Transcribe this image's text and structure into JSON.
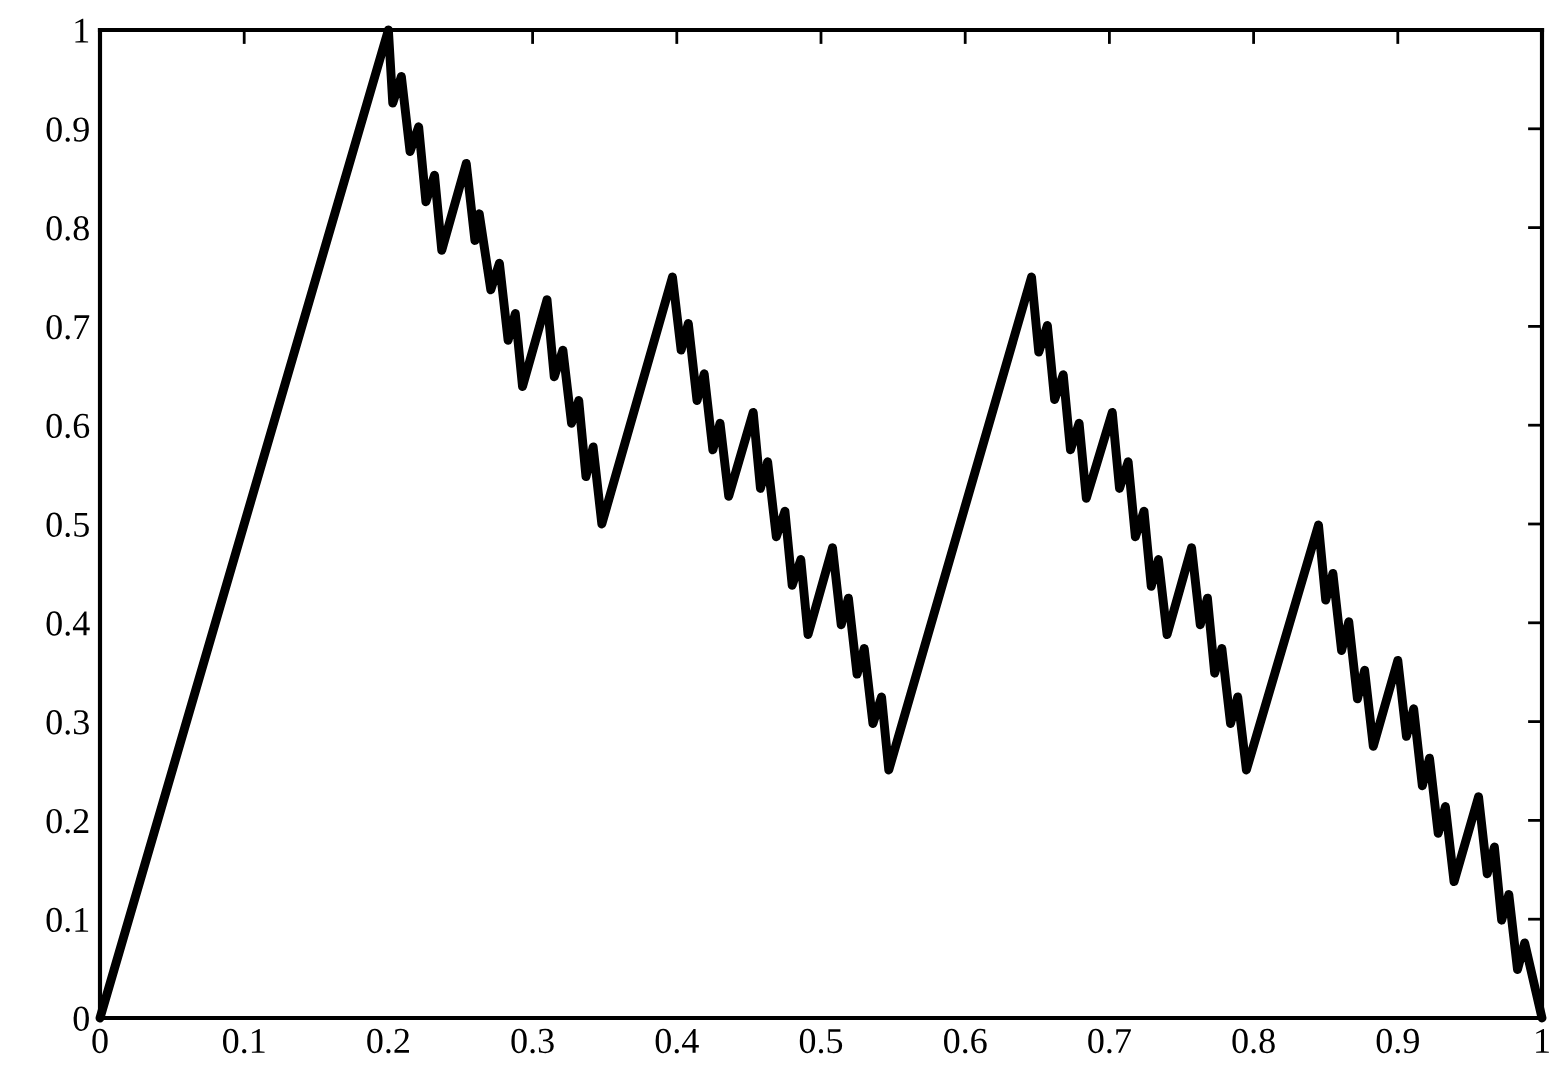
{
  "chart_data": {
    "type": "line",
    "x": [
      0,
      0.2,
      0.203,
      0.209,
      0.215,
      0.221,
      0.226,
      0.232,
      0.237,
      0.254,
      0.26,
      0.263,
      0.271,
      0.277,
      0.283,
      0.288,
      0.293,
      0.31,
      0.315,
      0.321,
      0.327,
      0.332,
      0.337,
      0.342,
      0.348,
      0.397,
      0.403,
      0.408,
      0.414,
      0.419,
      0.425,
      0.43,
      0.436,
      0.453,
      0.458,
      0.463,
      0.469,
      0.475,
      0.48,
      0.486,
      0.491,
      0.508,
      0.514,
      0.519,
      0.525,
      0.53,
      0.536,
      0.542,
      0.547,
      0.646,
      0.651,
      0.657,
      0.662,
      0.668,
      0.673,
      0.679,
      0.684,
      0.702,
      0.707,
      0.713,
      0.718,
      0.724,
      0.729,
      0.734,
      0.74,
      0.757,
      0.763,
      0.768,
      0.773,
      0.778,
      0.784,
      0.789,
      0.795,
      0.845,
      0.85,
      0.855,
      0.861,
      0.866,
      0.872,
      0.877,
      0.883,
      0.9,
      0.906,
      0.911,
      0.917,
      0.922,
      0.928,
      0.933,
      0.939,
      0.956,
      0.962,
      0.967,
      0.972,
      0.977,
      0.983,
      0.988,
      1
    ],
    "series": [
      {
        "color": "#000000",
        "values": [
          0,
          1,
          0.926,
          0.953,
          0.877,
          0.902,
          0.826,
          0.853,
          0.777,
          0.865,
          0.787,
          0.814,
          0.737,
          0.764,
          0.686,
          0.713,
          0.639,
          0.727,
          0.649,
          0.676,
          0.602,
          0.625,
          0.548,
          0.578,
          0.5,
          0.75,
          0.676,
          0.703,
          0.625,
          0.652,
          0.575,
          0.602,
          0.528,
          0.613,
          0.536,
          0.563,
          0.487,
          0.513,
          0.438,
          0.464,
          0.388,
          0.476,
          0.398,
          0.425,
          0.348,
          0.374,
          0.298,
          0.325,
          0.251,
          0.75,
          0.674,
          0.701,
          0.626,
          0.651,
          0.575,
          0.602,
          0.526,
          0.613,
          0.536,
          0.563,
          0.487,
          0.513,
          0.437,
          0.464,
          0.388,
          0.476,
          0.398,
          0.425,
          0.349,
          0.374,
          0.298,
          0.325,
          0.251,
          0.499,
          0.423,
          0.45,
          0.372,
          0.401,
          0.323,
          0.352,
          0.275,
          0.362,
          0.285,
          0.313,
          0.235,
          0.263,
          0.187,
          0.214,
          0.138,
          0.224,
          0.146,
          0.173,
          0.099,
          0.125,
          0.049,
          0.076,
          0
        ]
      }
    ],
    "xlim": [
      0,
      1
    ],
    "ylim": [
      0,
      1
    ],
    "xticks": [
      0,
      0.1,
      0.2,
      0.3,
      0.4,
      0.5,
      0.6,
      0.7,
      0.8,
      0.9,
      1
    ],
    "yticks": [
      0,
      0.1,
      0.2,
      0.3,
      0.4,
      0.5,
      0.6,
      0.7,
      0.8,
      0.9,
      1
    ],
    "grid": false,
    "legend": false,
    "marker": "none",
    "line_style": "solid"
  }
}
